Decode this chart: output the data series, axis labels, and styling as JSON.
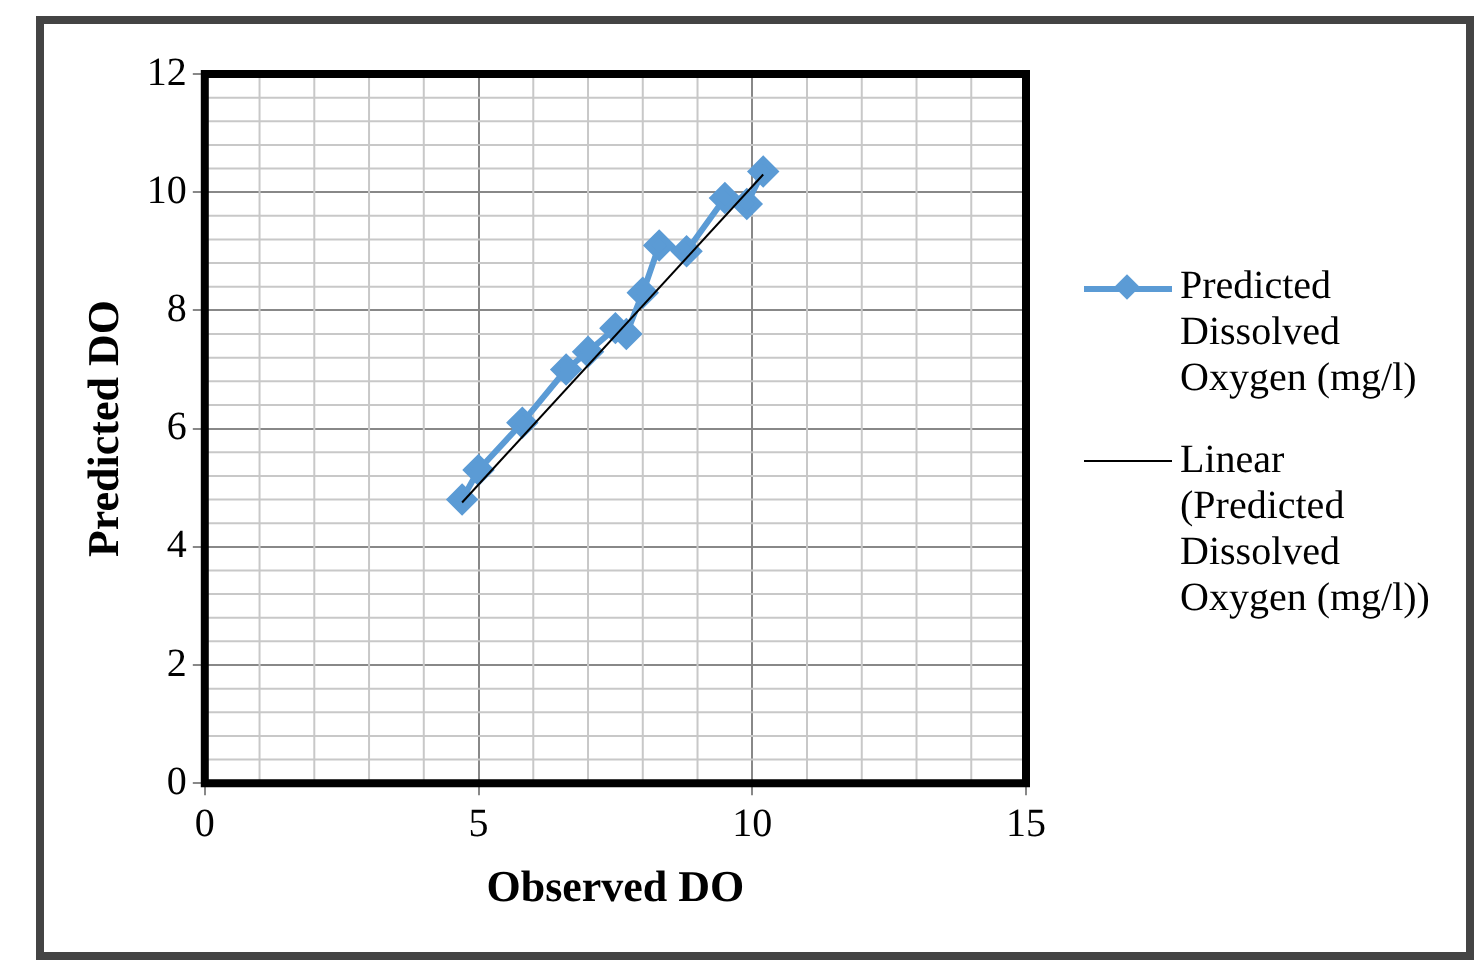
{
  "chart_data": {
    "type": "line",
    "xlabel": "Observed DO",
    "ylabel": "Predicted DO",
    "xlim": [
      0,
      15
    ],
    "xticks": [
      0,
      5,
      10,
      15
    ],
    "ylim": [
      0,
      12
    ],
    "yticks": [
      0,
      2,
      4,
      6,
      8,
      10,
      12
    ],
    "grid": true,
    "legend": "right",
    "series": [
      {
        "name": "Predicted Dissolved Oxygen (mg/l)",
        "color": "#5b9bd5",
        "marker": "diamond",
        "x": [
          4.7,
          5.0,
          5.8,
          6.6,
          7.0,
          7.5,
          7.7,
          8.0,
          8.3,
          8.8,
          9.5,
          9.9,
          10.2
        ],
        "values": [
          4.8,
          5.3,
          6.1,
          7.0,
          7.3,
          7.7,
          7.6,
          8.3,
          9.1,
          9.0,
          9.9,
          9.8,
          10.35
        ]
      },
      {
        "name": "Linear (Predicted Dissolved Oxygen (mg/l))",
        "color": "#000000",
        "marker": "none",
        "x": [
          4.7,
          10.2
        ],
        "values": [
          4.75,
          10.3
        ]
      }
    ]
  }
}
